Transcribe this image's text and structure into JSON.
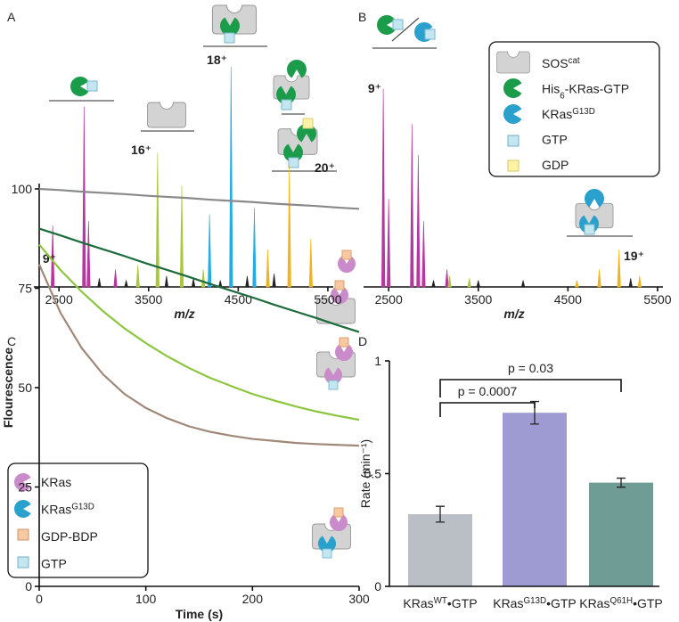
{
  "chart_data": [
    {
      "panel": "A",
      "type": "spectrum",
      "xlabel": "m/z",
      "xlim": [
        2200,
        5600
      ],
      "xticks": [
        2500,
        3500,
        4500,
        5500
      ],
      "series": [
        {
          "label": "9⁺",
          "color": "#b5379f",
          "x": [
            2430,
            2780,
            2830,
            3130
          ],
          "values": [
            28,
            82,
            30,
            8
          ]
        },
        {
          "label": "16⁺",
          "color": "#a9c93a",
          "x": [
            3380,
            3600,
            3870,
            4110
          ],
          "values": [
            10,
            61,
            46,
            8
          ]
        },
        {
          "label": "18⁺",
          "color": "#25ade2",
          "x": [
            4180,
            4420,
            4680
          ],
          "values": [
            33,
            100,
            36
          ]
        },
        {
          "label": "20⁺",
          "color": "#f2b31b",
          "x": [
            4830,
            5070,
            5310
          ],
          "values": [
            17,
            55,
            22
          ]
        },
        {
          "color": "#222222",
          "x": [
            2950,
            3250,
            3700,
            4000,
            4300,
            4600,
            4900
          ],
          "values": [
            4,
            3,
            5,
            4,
            3,
            5,
            6
          ]
        }
      ]
    },
    {
      "panel": "B",
      "type": "spectrum",
      "xlabel": "m/z",
      "xlim": [
        2200,
        5600
      ],
      "xticks": [
        2500,
        3500,
        4500,
        5500
      ],
      "series": [
        {
          "label": "9⁺",
          "color": "#b5379f",
          "x": [
            2440,
            2500,
            2760,
            2830,
            2890,
            3150
          ],
          "values": [
            90,
            40,
            74,
            60,
            30,
            8
          ]
        },
        {
          "color": "#a9c93a",
          "x": [
            3180,
            3400
          ],
          "values": [
            5,
            4
          ]
        },
        {
          "label": "19⁺",
          "color": "#f2b31b",
          "x": [
            4600,
            4850,
            5070,
            5300
          ],
          "values": [
            3,
            8,
            17,
            5
          ]
        },
        {
          "color": "#222222",
          "x": [
            3000,
            3500,
            4000,
            5200
          ],
          "values": [
            3,
            3,
            3,
            4
          ]
        }
      ],
      "legend": [
        {
          "text": "SOS",
          "sup": "cat"
        },
        {
          "text": "His",
          "sub": "6",
          "tail": "-KRas-GTP"
        },
        {
          "text": "KRas",
          "sup": "G13D"
        },
        {
          "text": "GTP"
        },
        {
          "text": "GDP"
        }
      ]
    },
    {
      "panel": "C",
      "type": "line",
      "xlabel": "Time (s)",
      "ylabel": "Flourescence",
      "xlim": [
        0,
        300
      ],
      "ylim": [
        0,
        100
      ],
      "xticks": [
        0,
        100,
        200,
        300
      ],
      "yticks": [
        0,
        25,
        50,
        75,
        100
      ],
      "x": [
        0,
        20,
        40,
        60,
        80,
        100,
        120,
        140,
        160,
        180,
        200,
        220,
        240,
        260,
        280,
        300
      ],
      "series": [
        {
          "color": "#8a8a8a",
          "values": [
            100,
            99.7,
            99.3,
            99,
            98.7,
            98.3,
            98,
            97.7,
            97.3,
            97,
            96.7,
            96.3,
            96,
            95.7,
            95.3,
            95
          ]
        },
        {
          "color": "#1c6b3a",
          "values": [
            90,
            88.3,
            86.5,
            84.8,
            83.1,
            81.3,
            79.6,
            77.9,
            76.1,
            74.4,
            72.7,
            70.9,
            69.2,
            67.5,
            65.7,
            64
          ]
        },
        {
          "color": "#8cc63f",
          "values": [
            86,
            79.6,
            74.1,
            69.2,
            64.9,
            61.2,
            57.9,
            55,
            52.5,
            50.4,
            48.4,
            46.8,
            45.3,
            44,
            42.9,
            41.9
          ]
        },
        {
          "color": "#a08878",
          "values": [
            81,
            68.8,
            59.9,
            53.3,
            48.4,
            44.9,
            42.3,
            40.3,
            38.9,
            37.9,
            37.1,
            36.6,
            36.1,
            35.8,
            35.6,
            35.4
          ]
        }
      ],
      "legend": [
        {
          "text": "KRas"
        },
        {
          "text": "KRas",
          "sup": "G13D"
        },
        {
          "text": "GDP-BDP"
        },
        {
          "text": "GTP"
        }
      ]
    },
    {
      "panel": "D",
      "type": "bar",
      "ylabel": "Rate (min⁻¹)",
      "ylim": [
        0,
        1
      ],
      "yticks": [
        0,
        0.5,
        1
      ],
      "categories": [
        {
          "text": "KRas",
          "sup": "WT",
          "tail": "•GTP"
        },
        {
          "text": "KRas",
          "sup": "G13D",
          "tail": "•GTP"
        },
        {
          "text": "KRas",
          "sup": "Q61H",
          "tail": "•GTP"
        }
      ],
      "values": [
        0.32,
        0.77,
        0.46
      ],
      "errors": [
        0.035,
        0.05,
        0.02
      ],
      "colors": [
        "#b9bfc5",
        "#9d9bd2",
        "#6f9c94"
      ],
      "annotations": [
        "p = 0.0007",
        "p = 0.03"
      ]
    }
  ]
}
